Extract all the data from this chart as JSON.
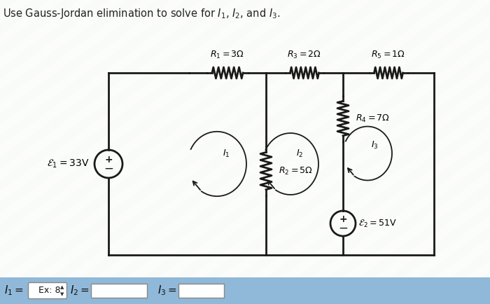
{
  "title": "Use Gauss-Jordan elimination to solve for $I_1$, $I_2$, and $I_3$.",
  "R1_label": "$R_1 = 3\\Omega$",
  "R2_label": "$R_2 = 5\\Omega$",
  "R3_label": "$R_3 = 2\\Omega$",
  "R4_label": "$R_4 = 7\\Omega$",
  "R5_label": "$R_5 = 1\\Omega$",
  "E1_label": "$\\mathcal{E}_1 = 33\\mathrm{V}$",
  "E2_label": "$\\mathcal{E}_2 = 51\\mathrm{V}$",
  "I1_label": "$I_1$",
  "I2_label": "$I_2$",
  "I3_label": "$I_3$",
  "I1_bottom": "$I_1 = $",
  "I2_bottom": "$I_2 = $",
  "I3_bottom": "$I_3 = $",
  "ex_box": "Ex: 8",
  "bg_stripe_light": "#e8f0e0",
  "bg_stripe_dark": "#d0e4d0",
  "bottom_bar_color": "#90b8d8",
  "line_color": "#1a1a1a",
  "lw": 2.0
}
